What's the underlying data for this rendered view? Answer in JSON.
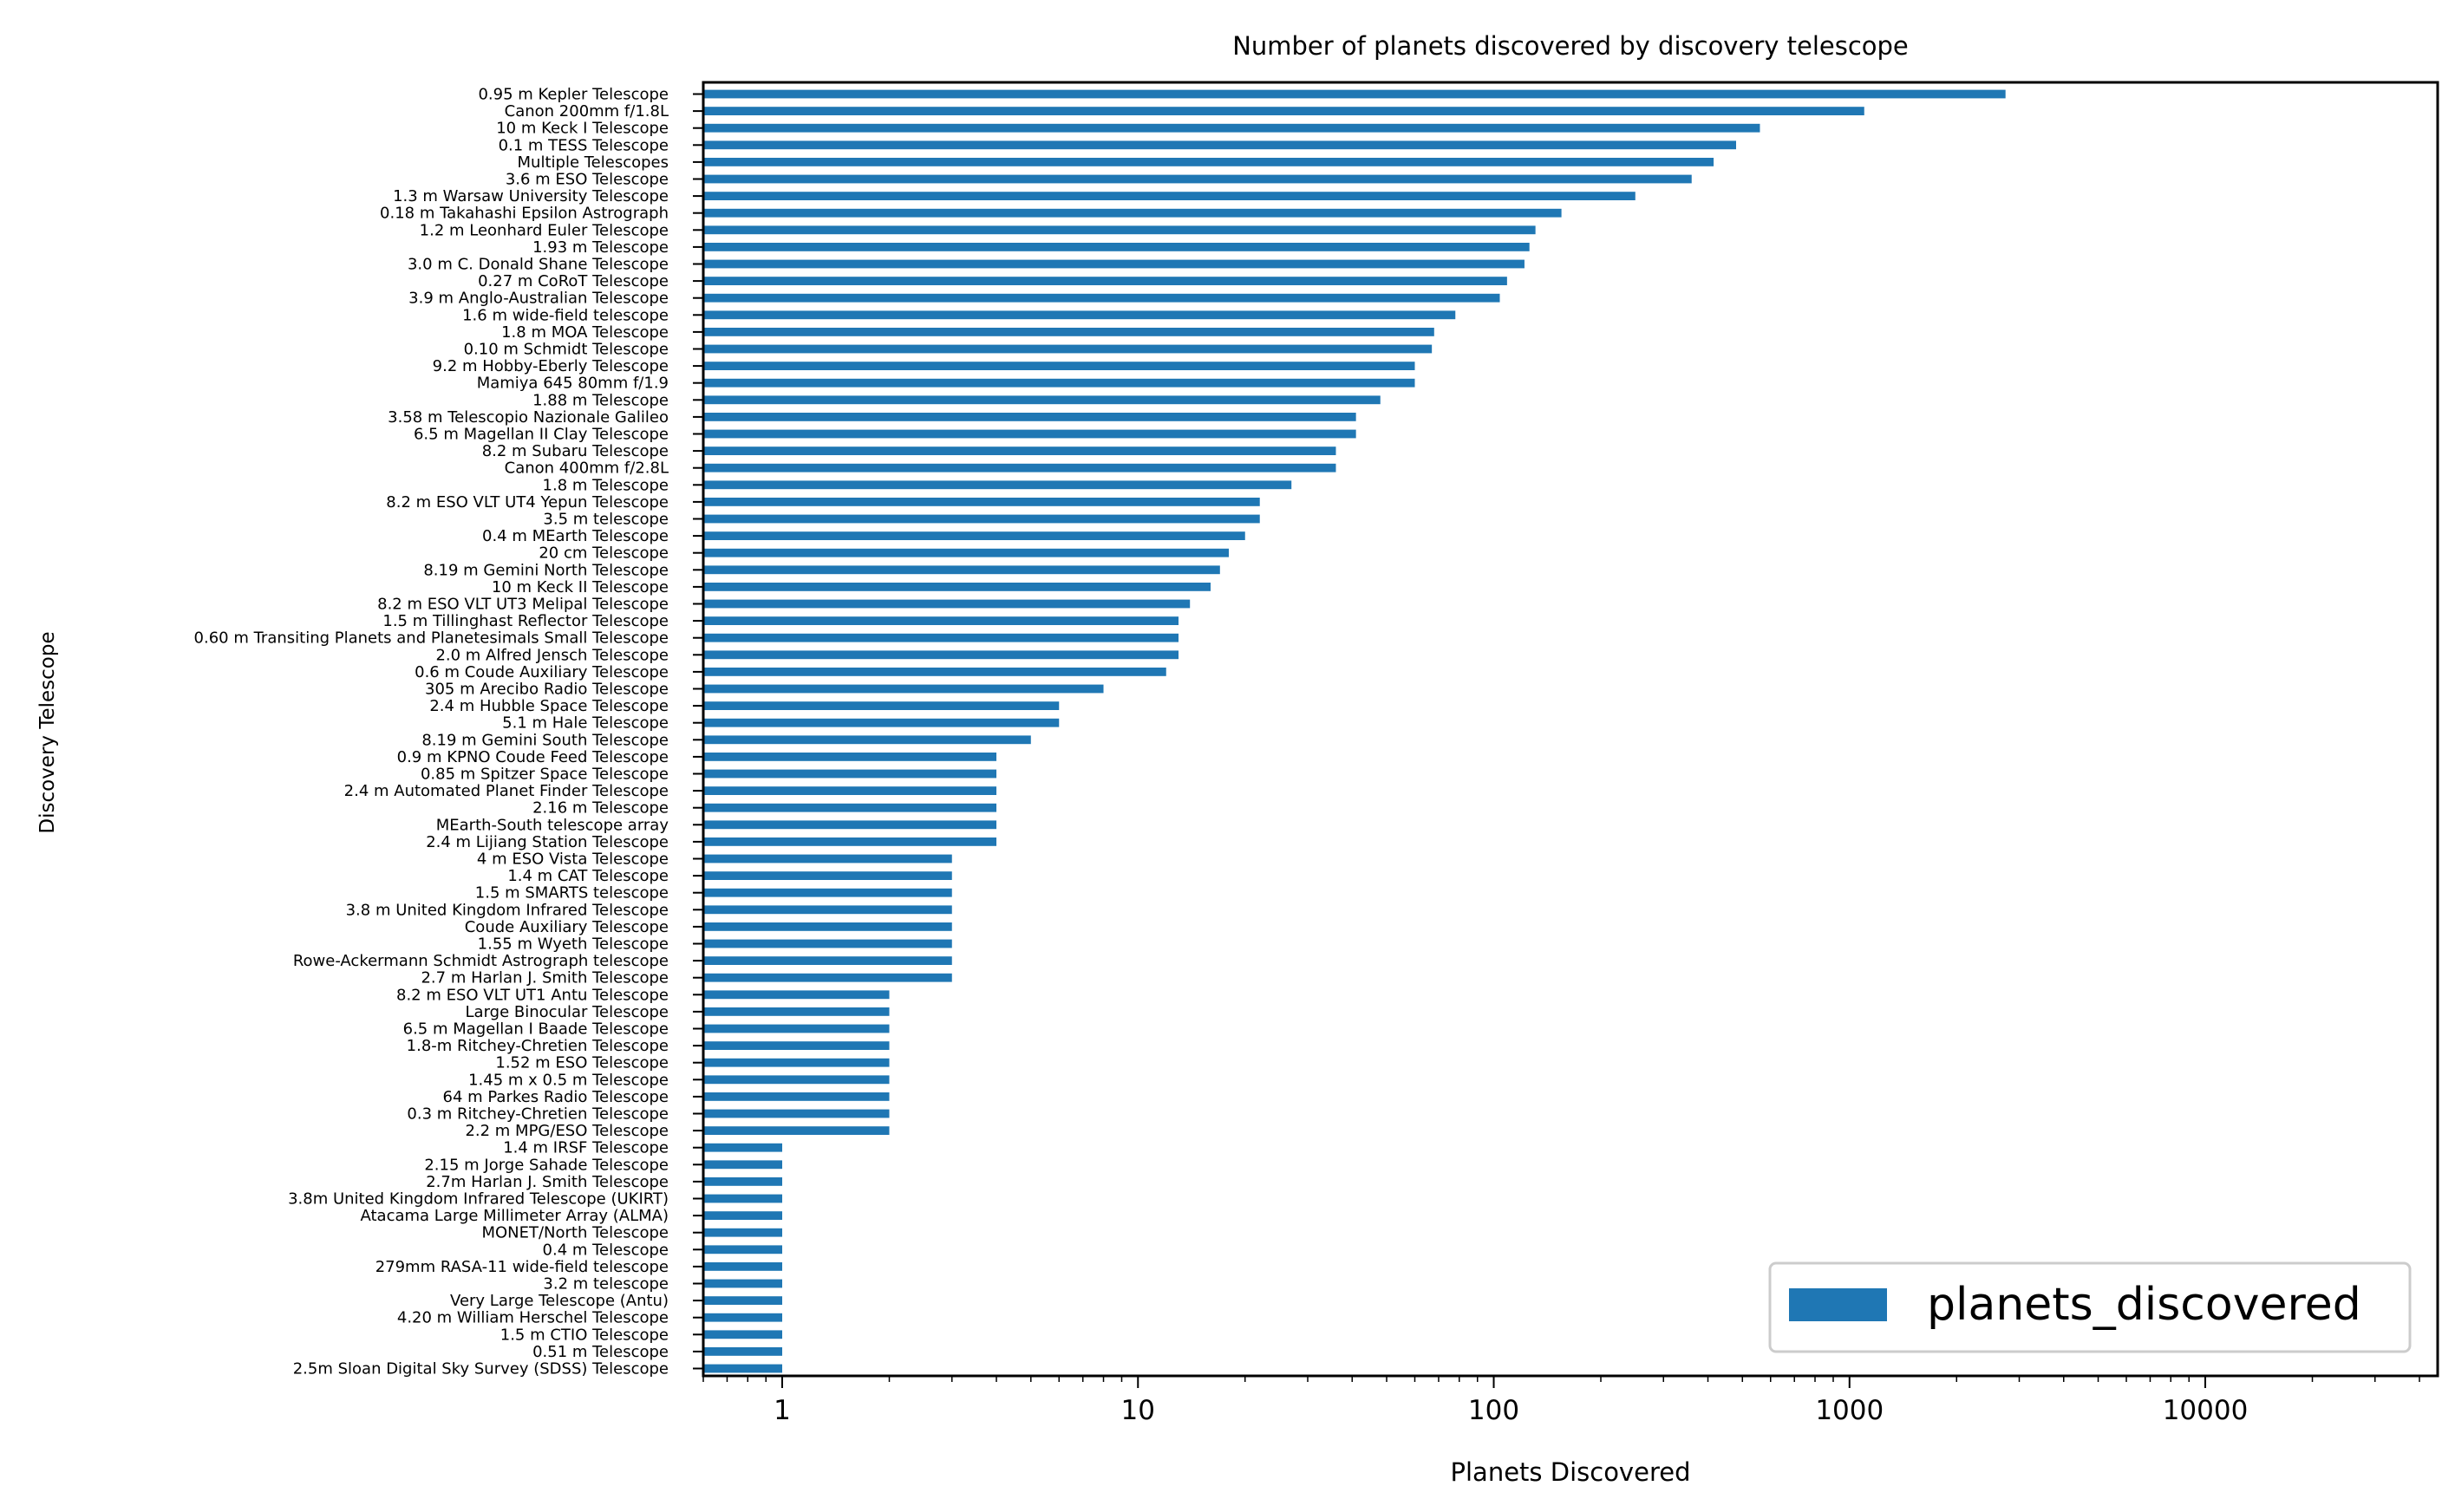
{
  "chart_data": {
    "type": "bar",
    "orientation": "horizontal",
    "title": "Number of planets discovered by discovery telescope",
    "xlabel": "Planets Discovered",
    "ylabel": "Discovery Telescope",
    "x_scale": "log",
    "xlim": [
      0.6,
      45000
    ],
    "x_ticks": [
      1,
      10,
      100,
      1000,
      10000
    ],
    "x_tick_labels": [
      "1",
      "10",
      "100",
      "1000",
      "10000"
    ],
    "grid": false,
    "legend": {
      "position": "bottom-right"
    },
    "colors": {
      "bar": "#1f77b4"
    },
    "categories": [
      "0.95 m Kepler Telescope",
      "Canon 200mm f/1.8L",
      "10 m Keck I Telescope",
      "0.1 m TESS Telescope",
      "Multiple Telescopes",
      "3.6 m ESO Telescope",
      "1.3 m Warsaw University Telescope",
      "0.18 m Takahashi Epsilon Astrograph",
      "1.2 m Leonhard Euler Telescope",
      "1.93 m Telescope",
      "3.0 m C. Donald Shane Telescope",
      "0.27 m CoRoT Telescope",
      "3.9 m Anglo-Australian Telescope",
      "1.6 m wide-field telescope",
      "1.8 m MOA Telescope",
      "0.10 m Schmidt Telescope",
      "9.2 m Hobby-Eberly Telescope",
      "Mamiya 645 80mm f/1.9",
      "1.88 m Telescope",
      "3.58 m Telescopio Nazionale Galileo",
      "6.5 m Magellan II Clay Telescope",
      "8.2 m Subaru Telescope",
      "Canon 400mm f/2.8L",
      "1.8 m Telescope",
      "8.2 m ESO VLT UT4 Yepun Telescope",
      "3.5 m telescope",
      "0.4 m MEarth Telescope",
      "20 cm Telescope",
      "8.19 m Gemini North Telescope",
      "10 m Keck II Telescope",
      "8.2 m ESO VLT UT3 Melipal Telescope",
      "1.5 m Tillinghast Reflector Telescope",
      "0.60 m Transiting Planets and Planetesimals Small Telescope",
      "2.0 m Alfred Jensch Telescope",
      "0.6 m Coude Auxiliary Telescope",
      "305 m Arecibo Radio Telescope",
      "2.4 m Hubble Space Telescope",
      "5.1 m Hale Telescope",
      "8.19 m Gemini South Telescope",
      "0.9 m KPNO Coude Feed Telescope",
      "0.85 m Spitzer Space Telescope",
      "2.4 m Automated Planet Finder Telescope",
      "2.16 m Telescope",
      "MEarth-South telescope array",
      "2.4 m Lijiang Station Telescope",
      "4 m ESO Vista Telescope",
      "1.4 m CAT Telescope",
      "1.5 m SMARTS telescope",
      "3.8 m United Kingdom Infrared Telescope",
      "Coude Auxiliary Telescope",
      "1.55 m Wyeth Telescope",
      "Rowe-Ackermann Schmidt Astrograph telescope",
      "2.7 m Harlan J. Smith Telescope",
      "8.2 m ESO VLT UT1 Antu Telescope",
      "Large Binocular Telescope",
      "6.5 m Magellan I Baade Telescope",
      "1.8-m Ritchey-Chretien Telescope",
      "1.52 m ESO Telescope",
      "1.45 m x 0.5 m Telescope",
      "64 m Parkes Radio Telescope",
      "0.3 m Ritchey-Chretien Telescope",
      "2.2 m MPG/ESO Telescope",
      "1.4 m IRSF Telescope",
      "2.15 m Jorge Sahade Telescope",
      "2.7m Harlan J. Smith Telescope",
      "3.8m United Kingdom Infrared Telescope (UKIRT)",
      "Atacama Large Millimeter Array (ALMA)",
      "MONET/North Telescope",
      "0.4 m Telescope",
      "279mm RASA-11 wide-field telescope",
      "3.2 m telescope",
      "Very Large Telescope (Antu)",
      "4.20 m William Herschel Telescope",
      "1.5 m CTIO Telescope",
      "0.51 m Telescope",
      "2.5m Sloan Digital Sky Survey (SDSS) Telescope"
    ],
    "series": [
      {
        "name": "planets_discovered",
        "values": [
          2745,
          1100,
          560,
          480,
          415,
          360,
          250,
          155,
          131,
          126,
          122,
          109,
          104,
          78,
          68,
          67,
          60,
          60,
          48,
          41,
          41,
          36,
          36,
          27,
          22,
          22,
          20,
          18,
          17,
          16,
          14,
          13,
          13,
          13,
          12,
          8,
          6,
          6,
          5,
          4,
          4,
          4,
          4,
          4,
          4,
          3,
          3,
          3,
          3,
          3,
          3,
          3,
          3,
          2,
          2,
          2,
          2,
          2,
          2,
          2,
          2,
          2,
          1,
          1,
          1,
          1,
          1,
          1,
          1,
          1,
          1,
          1,
          1,
          1,
          1,
          1
        ]
      }
    ]
  }
}
